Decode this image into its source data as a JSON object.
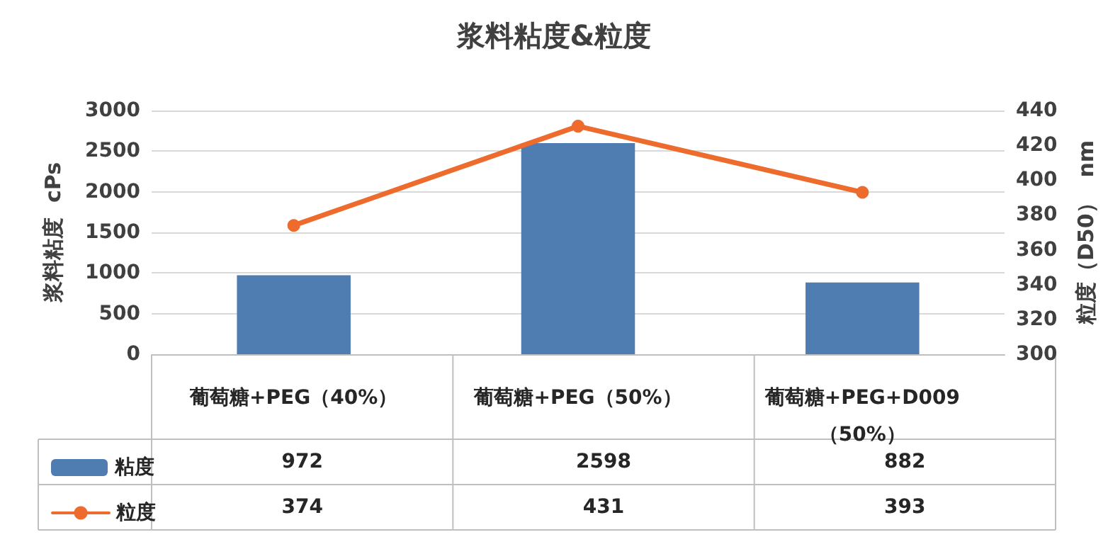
{
  "chart_data": {
    "type": "bar",
    "title": "浆料粘度&粒度",
    "ylabel": "浆料粘度  cPs",
    "y2label": "粒度（D50）  nm",
    "categories": [
      "葡萄糖+PEG（40%）",
      "葡萄糖+PEG（50%）",
      "葡萄糖+PEG+D009（50%）"
    ],
    "series": [
      {
        "name": "粘度",
        "color": "#4f7cb1",
        "values": [
          972,
          2598,
          882
        ]
      },
      {
        "name": "粒度",
        "type": "line",
        "axis": "y2",
        "color": "#ec6b2d",
        "values": [
          374,
          431,
          393
        ]
      }
    ],
    "ylim": [
      0,
      3000
    ],
    "yticks": [
      0,
      500,
      1000,
      1500,
      2000,
      2500,
      3000
    ],
    "y2lim": [
      300,
      440
    ],
    "y2ticks": [
      300,
      320,
      340,
      360,
      380,
      400,
      420,
      440
    ],
    "grid": "y",
    "legend": "bottom left",
    "data_labels": true,
    "marker": "circle",
    "line_style": "solid"
  }
}
